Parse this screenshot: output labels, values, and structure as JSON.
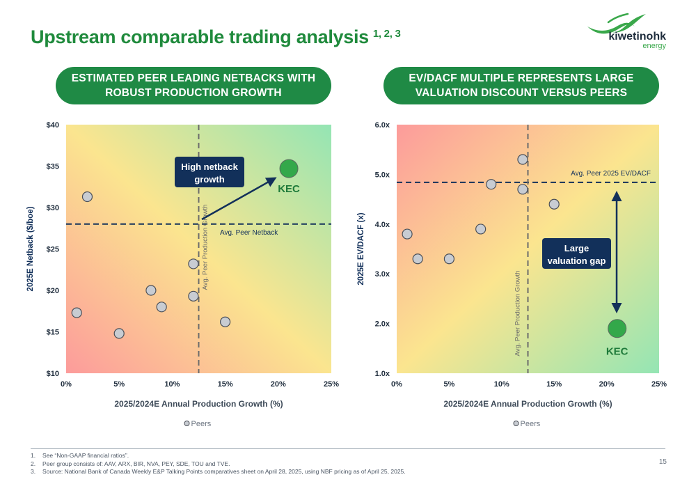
{
  "header": {
    "title": "Upstream comparable trading analysis",
    "title_sup": "1, 2, 3",
    "logo_name": "kiwetinohk",
    "logo_sub": "energy"
  },
  "pills": {
    "left": [
      "ESTIMATED PEER LEADING NETBACKS WITH",
      "ROBUST PRODUCTION GROWTH"
    ],
    "right": [
      "EV/DACF MULTIPLE REPRESENTS LARGE",
      "VALUATION DISCOUNT VERSUS PEERS"
    ]
  },
  "colors": {
    "brand_green": "#1f8a3c",
    "navy": "#12305a",
    "kec_green": "#33a84a",
    "peer_fill": "#c8ccd2"
  },
  "chart_data": [
    {
      "type": "scatter",
      "xlabel": "2025/2024E Annual Production Growth (%)",
      "ylabel": "2025E Netback ($/boe)",
      "xlim": [
        0,
        25
      ],
      "ylim": [
        10,
        40
      ],
      "x_ticks": [
        "0%",
        "5%",
        "10%",
        "15%",
        "20%",
        "25%"
      ],
      "y_ticks": [
        "$10",
        "$15",
        "$20",
        "$25",
        "$30",
        "$35",
        "$40"
      ],
      "background": "gradient red (bottom-left) to yellow to green (top-right)",
      "legend": "bottom-center",
      "series": [
        {
          "name": "Peers",
          "points": [
            [
              1,
              17.3
            ],
            [
              2,
              31.3
            ],
            [
              5,
              14.8
            ],
            [
              8,
              20.0
            ],
            [
              9,
              18.0
            ],
            [
              12,
              23.2
            ],
            [
              12,
              19.3
            ],
            [
              15,
              16.2
            ]
          ]
        }
      ],
      "highlight": {
        "label": "KEC",
        "x": 21,
        "y": 34.7
      },
      "ref_lines": [
        {
          "axis": "y",
          "value": 28,
          "label": "Avg. Peer Netback"
        },
        {
          "axis": "x",
          "value": 12.5,
          "label": "Avg. Peer Production Growth"
        }
      ],
      "callout": {
        "lines": [
          "High netback",
          "growth"
        ]
      }
    },
    {
      "type": "scatter",
      "xlabel": "2025/2024E Annual Production Growth (%)",
      "ylabel": "2025E EV/DACF (x)",
      "xlim": [
        0,
        25
      ],
      "ylim": [
        1,
        6
      ],
      "x_ticks": [
        "0%",
        "5%",
        "10%",
        "15%",
        "20%",
        "25%"
      ],
      "y_ticks": [
        "1.0x",
        "2.0x",
        "3.0x",
        "4.0x",
        "5.0x",
        "6.0x"
      ],
      "background": "gradient red (top-left) to yellow to green (bottom-right)",
      "legend": "bottom-center",
      "series": [
        {
          "name": "Peers",
          "points": [
            [
              1,
              3.8
            ],
            [
              2,
              3.3
            ],
            [
              5,
              3.3
            ],
            [
              8,
              3.9
            ],
            [
              9,
              4.8
            ],
            [
              12,
              5.3
            ],
            [
              12,
              4.7
            ],
            [
              15,
              4.4
            ]
          ]
        }
      ],
      "highlight": {
        "label": "KEC",
        "x": 21,
        "y": 1.9
      },
      "ref_lines": [
        {
          "axis": "y",
          "value": 4.84,
          "label": "Avg. Peer 2025 EV/DACF"
        },
        {
          "axis": "x",
          "value": 12.5,
          "label": "Avg. Peer Production Growth"
        }
      ],
      "callout": {
        "lines": [
          "Large",
          "valuation gap"
        ]
      }
    }
  ],
  "footnotes": [
    {
      "num": "1.",
      "text": "See “Non-GAAP financial ratios”."
    },
    {
      "num": "2.",
      "text": "Peer group consists of: AAV, ARX, BIR, NVA, PEY, SDE, TOU and TVE."
    },
    {
      "num": "3.",
      "text": "Source: National Bank of Canada Weekly E&P Talking Points comparatives sheet on April 28, 2025, using NBF pricing as of April 25, 2025."
    }
  ],
  "page_number": "15"
}
